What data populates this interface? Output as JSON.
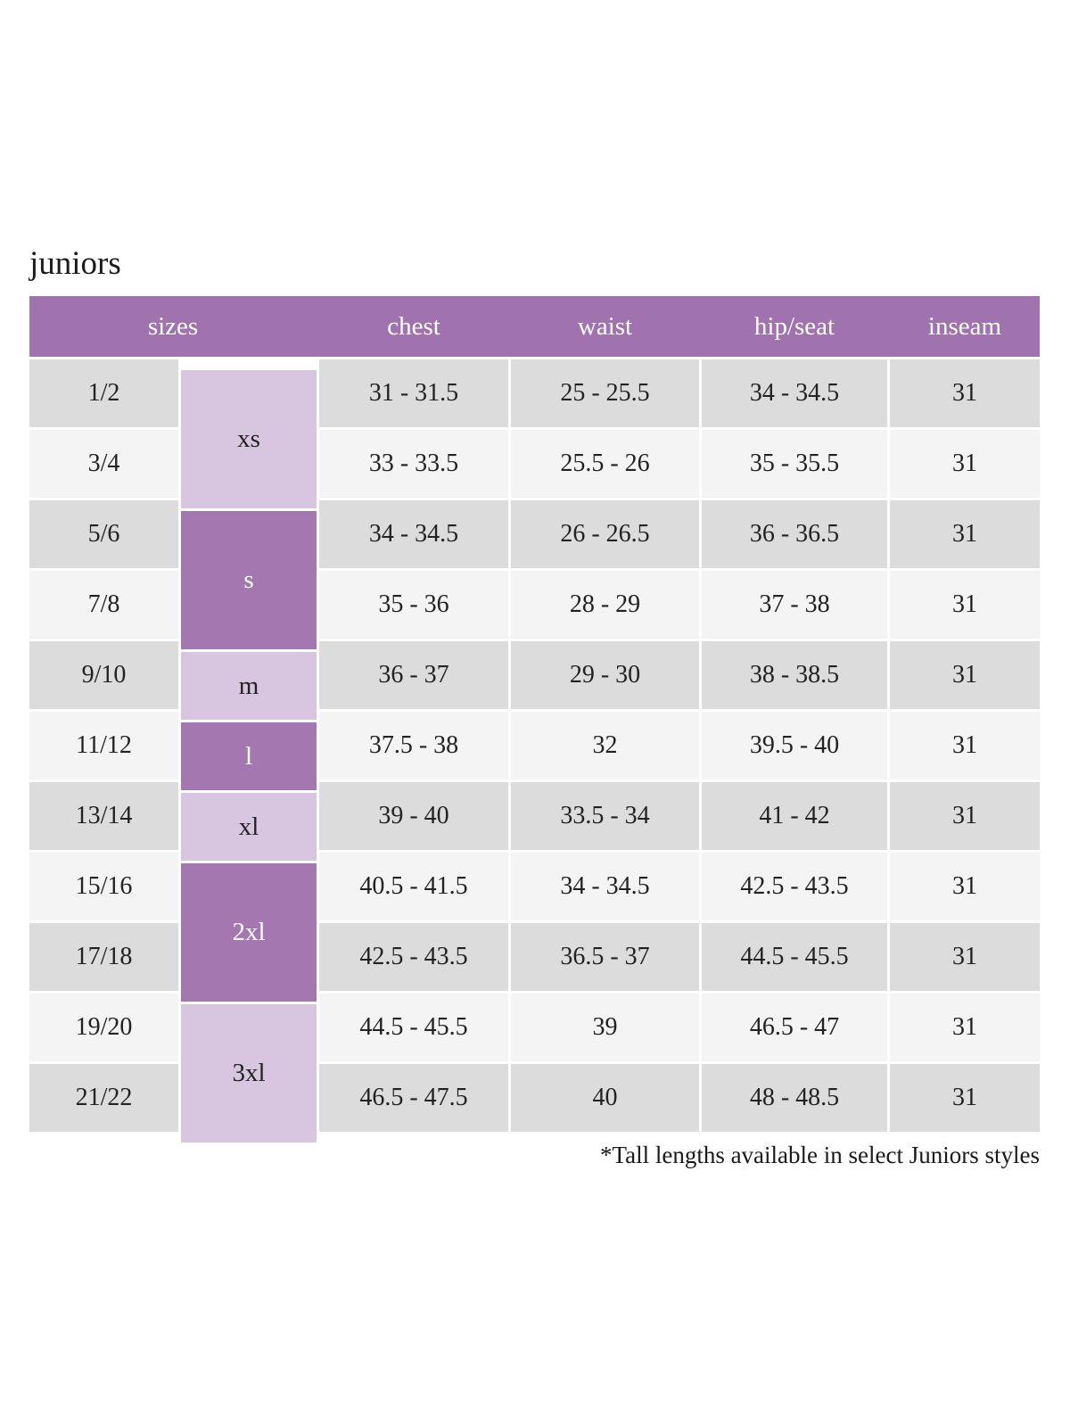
{
  "page": {
    "title": "juniors",
    "footnote": "*Tall lengths available in select Juniors styles"
  },
  "colors": {
    "header_purple": "#a173ae",
    "dark_purple": "#a477b1",
    "light_purple": "#d8c6e0",
    "row_gray": "#dcdcdc",
    "row_light": "#f4f4f4",
    "body_text": "#222222",
    "header_text": "#ffffff"
  },
  "chart_data": {
    "type": "table",
    "title": "juniors",
    "headers": [
      "sizes",
      "chest",
      "waist",
      "hip/seat",
      "inseam"
    ],
    "size_groups": [
      {
        "label": "xs",
        "spans_rows": [
          "1/2",
          "3/4"
        ],
        "shade": "light"
      },
      {
        "label": "s",
        "spans_rows": [
          "5/6",
          "7/8"
        ],
        "shade": "dark"
      },
      {
        "label": "m",
        "spans_rows": [
          "9/10"
        ],
        "shade": "light"
      },
      {
        "label": "l",
        "spans_rows": [
          "11/12"
        ],
        "shade": "dark"
      },
      {
        "label": "xl",
        "spans_rows": [
          "13/14"
        ],
        "shade": "light"
      },
      {
        "label": "2xl",
        "spans_rows": [
          "15/16",
          "17/18"
        ],
        "shade": "dark"
      },
      {
        "label": "3xl",
        "spans_rows": [
          "19/20",
          "21/22"
        ],
        "shade": "light"
      }
    ],
    "rows": [
      {
        "size": "1/2",
        "letter": "xs",
        "chest": "31 - 31.5",
        "waist": "25 - 25.5",
        "hip_seat": "34 - 34.5",
        "inseam": "31"
      },
      {
        "size": "3/4",
        "letter": "xs",
        "chest": "33 - 33.5",
        "waist": "25.5 - 26",
        "hip_seat": "35 - 35.5",
        "inseam": "31"
      },
      {
        "size": "5/6",
        "letter": "s",
        "chest": "34 - 34.5",
        "waist": "26 - 26.5",
        "hip_seat": "36 - 36.5",
        "inseam": "31"
      },
      {
        "size": "7/8",
        "letter": "s",
        "chest": "35 - 36",
        "waist": "28 - 29",
        "hip_seat": "37 - 38",
        "inseam": "31"
      },
      {
        "size": "9/10",
        "letter": "m",
        "chest": "36 - 37",
        "waist": "29 - 30",
        "hip_seat": "38 - 38.5",
        "inseam": "31"
      },
      {
        "size": "11/12",
        "letter": "l",
        "chest": "37.5 - 38",
        "waist": "32",
        "hip_seat": "39.5 - 40",
        "inseam": "31"
      },
      {
        "size": "13/14",
        "letter": "xl",
        "chest": "39 - 40",
        "waist": "33.5 - 34",
        "hip_seat": "41 - 42",
        "inseam": "31"
      },
      {
        "size": "15/16",
        "letter": "2xl",
        "chest": "40.5 - 41.5",
        "waist": "34 - 34.5",
        "hip_seat": "42.5 - 43.5",
        "inseam": "31"
      },
      {
        "size": "17/18",
        "letter": "2xl",
        "chest": "42.5 - 43.5",
        "waist": "36.5 - 37",
        "hip_seat": "44.5 - 45.5",
        "inseam": "31"
      },
      {
        "size": "19/20",
        "letter": "3xl",
        "chest": "44.5 - 45.5",
        "waist": "39",
        "hip_seat": "46.5 - 47",
        "inseam": "31"
      },
      {
        "size": "21/22",
        "letter": "3xl",
        "chest": "46.5 - 47.5",
        "waist": "40",
        "hip_seat": "48 - 48.5",
        "inseam": "31"
      }
    ]
  }
}
